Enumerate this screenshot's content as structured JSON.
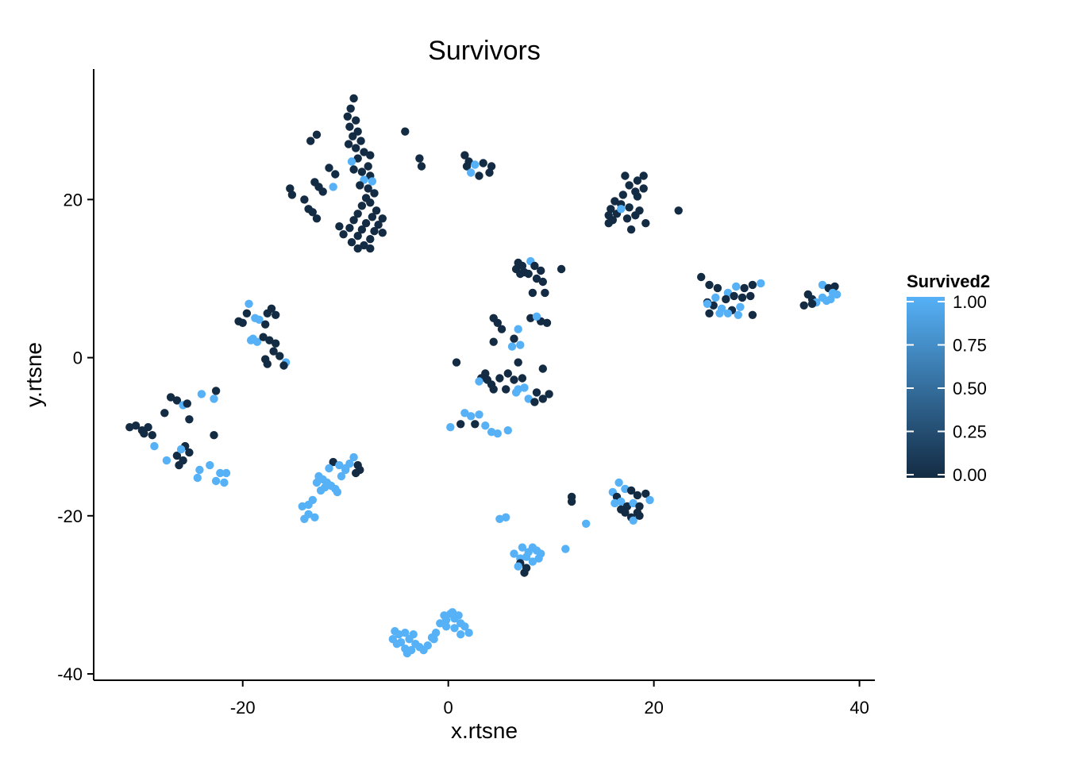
{
  "chart_data": {
    "type": "scatter",
    "title": "Survivors",
    "xlabel": "x.rtsne",
    "ylabel": "y.rtsne",
    "xlim": [
      -34.5,
      41.5
    ],
    "ylim": [
      -40.8,
      36.5
    ],
    "x_ticks": [
      -20,
      0,
      20,
      40
    ],
    "x_tick_labels": [
      "-20",
      "0",
      "20",
      "40"
    ],
    "y_ticks": [
      -40,
      -20,
      0,
      20
    ],
    "y_tick_labels": [
      "-40",
      "-20",
      "0",
      "20"
    ],
    "grid": false,
    "legend": {
      "title": "Survived2",
      "placement": "right",
      "type": "continuous-colorbar",
      "ticks": [
        0,
        0.25,
        0.5,
        0.75,
        1
      ],
      "tick_labels": [
        "0.00",
        "0.25",
        "0.50",
        "0.75",
        "1.00"
      ],
      "low_color": "#132B43",
      "high_color": "#56B1F7"
    },
    "point_fields": [
      "x",
      "y",
      "survived2"
    ],
    "points": [
      [
        -9.2,
        32.8,
        0
      ],
      [
        -9.5,
        31.5,
        0
      ],
      [
        -9.8,
        30.5,
        0
      ],
      [
        -9.0,
        30.0,
        0
      ],
      [
        -9.6,
        29.2,
        0
      ],
      [
        -8.8,
        28.6,
        0
      ],
      [
        -9.3,
        28.0,
        0
      ],
      [
        -8.5,
        27.4,
        0
      ],
      [
        -9.7,
        27.0,
        0
      ],
      [
        -9.0,
        26.5,
        0
      ],
      [
        -8.2,
        26.0,
        0
      ],
      [
        -7.6,
        25.6,
        0
      ],
      [
        -8.8,
        25.2,
        0
      ],
      [
        -9.4,
        24.8,
        1
      ],
      [
        -7.8,
        24.2,
        0
      ],
      [
        -9.2,
        23.8,
        0
      ],
      [
        -8.4,
        23.5,
        0
      ],
      [
        -7.6,
        23.0,
        0
      ],
      [
        -8.2,
        22.5,
        1
      ],
      [
        -7.4,
        22.3,
        1
      ],
      [
        -8.6,
        21.8,
        0
      ],
      [
        -7.8,
        21.4,
        0
      ],
      [
        -7.2,
        20.8,
        0
      ],
      [
        -8.0,
        20.2,
        0
      ],
      [
        -7.6,
        19.6,
        0
      ],
      [
        -8.4,
        19.2,
        0
      ],
      [
        -7.0,
        18.6,
        0
      ],
      [
        -8.8,
        18.2,
        0
      ],
      [
        -7.4,
        17.8,
        0
      ],
      [
        -6.4,
        17.6,
        0
      ],
      [
        -9.2,
        17.4,
        0
      ],
      [
        -8.0,
        17.0,
        0
      ],
      [
        -6.8,
        16.8,
        0
      ],
      [
        -9.6,
        16.4,
        0
      ],
      [
        -8.4,
        16.2,
        0
      ],
      [
        -7.2,
        16.0,
        0
      ],
      [
        -6.4,
        15.8,
        0
      ],
      [
        -10.2,
        15.6,
        0
      ],
      [
        -8.8,
        15.4,
        0
      ],
      [
        -7.6,
        15.0,
        0
      ],
      [
        -9.4,
        14.6,
        0
      ],
      [
        -8.2,
        14.2,
        0
      ],
      [
        -7.6,
        13.8,
        0
      ],
      [
        -8.8,
        13.8,
        0
      ],
      [
        -10.6,
        16.6,
        0
      ],
      [
        -12.8,
        28.2,
        0
      ],
      [
        -13.4,
        27.4,
        0
      ],
      [
        -11.6,
        24.0,
        0
      ],
      [
        -11.0,
        23.2,
        0
      ],
      [
        -13.0,
        22.2,
        0
      ],
      [
        -12.6,
        21.6,
        0
      ],
      [
        -12.2,
        21.0,
        0
      ],
      [
        -11.2,
        21.6,
        1
      ],
      [
        -15.4,
        21.4,
        0
      ],
      [
        -15.2,
        20.6,
        0
      ],
      [
        -14.0,
        20.0,
        0
      ],
      [
        -13.6,
        18.8,
        0
      ],
      [
        -13.2,
        18.4,
        0
      ],
      [
        -12.8,
        17.6,
        0
      ],
      [
        -4.2,
        28.6,
        0
      ],
      [
        -2.8,
        25.2,
        0
      ],
      [
        -2.6,
        24.2,
        0
      ],
      [
        1.6,
        25.6,
        0
      ],
      [
        2.0,
        24.8,
        0
      ],
      [
        1.8,
        24.2,
        0
      ],
      [
        2.6,
        24.4,
        1
      ],
      [
        3.4,
        24.6,
        0
      ],
      [
        4.2,
        24.2,
        0
      ],
      [
        2.2,
        23.4,
        1
      ],
      [
        3.0,
        23.0,
        0
      ],
      [
        4.0,
        23.4,
        0
      ],
      [
        17.2,
        23.0,
        0
      ],
      [
        18.4,
        22.4,
        0
      ],
      [
        19.0,
        23.0,
        0
      ],
      [
        17.6,
        21.8,
        0
      ],
      [
        18.2,
        21.0,
        0
      ],
      [
        19.0,
        21.4,
        0
      ],
      [
        17.0,
        20.6,
        0
      ],
      [
        18.4,
        20.4,
        0
      ],
      [
        16.2,
        19.8,
        0
      ],
      [
        16.8,
        19.4,
        0
      ],
      [
        15.8,
        18.8,
        0
      ],
      [
        16.4,
        18.2,
        0
      ],
      [
        16.8,
        18.8,
        1
      ],
      [
        17.6,
        19.0,
        0
      ],
      [
        15.6,
        18.0,
        0
      ],
      [
        16.0,
        17.4,
        0
      ],
      [
        17.4,
        17.6,
        0
      ],
      [
        18.2,
        18.0,
        0
      ],
      [
        18.6,
        18.6,
        0
      ],
      [
        19.2,
        17.0,
        0
      ],
      [
        17.8,
        16.2,
        0
      ],
      [
        15.6,
        17.0,
        0
      ],
      [
        22.4,
        18.6,
        0
      ],
      [
        24.6,
        10.2,
        0
      ],
      [
        25.4,
        9.2,
        0
      ],
      [
        26.2,
        8.8,
        0
      ],
      [
        27.2,
        8.2,
        1
      ],
      [
        28.0,
        9.0,
        1
      ],
      [
        28.8,
        8.8,
        0
      ],
      [
        29.6,
        9.2,
        0
      ],
      [
        30.4,
        9.4,
        1
      ],
      [
        26.0,
        7.6,
        1
      ],
      [
        27.0,
        7.4,
        0
      ],
      [
        27.8,
        7.8,
        0
      ],
      [
        28.6,
        7.6,
        0
      ],
      [
        29.4,
        7.8,
        0
      ],
      [
        25.2,
        7.0,
        0
      ],
      [
        25.8,
        6.6,
        0
      ],
      [
        26.6,
        6.2,
        1
      ],
      [
        27.6,
        6.0,
        0
      ],
      [
        28.4,
        6.4,
        1
      ],
      [
        25.4,
        5.6,
        0
      ],
      [
        26.4,
        5.6,
        1
      ],
      [
        27.2,
        5.6,
        1
      ],
      [
        28.2,
        5.4,
        1
      ],
      [
        29.6,
        5.4,
        0
      ],
      [
        25.2,
        6.8,
        1
      ],
      [
        35.0,
        8.0,
        0
      ],
      [
        35.4,
        7.4,
        0
      ],
      [
        35.8,
        7.0,
        1
      ],
      [
        36.4,
        7.6,
        1
      ],
      [
        36.4,
        9.2,
        1
      ],
      [
        37.0,
        8.8,
        0
      ],
      [
        37.6,
        9.0,
        0
      ],
      [
        37.4,
        8.2,
        1
      ],
      [
        37.8,
        8.0,
        1
      ],
      [
        36.8,
        7.2,
        1
      ],
      [
        37.2,
        7.4,
        1
      ],
      [
        34.6,
        6.6,
        0
      ],
      [
        35.4,
        6.8,
        0
      ],
      [
        6.8,
        12.0,
        0
      ],
      [
        7.2,
        11.6,
        0
      ],
      [
        6.6,
        11.2,
        0
      ],
      [
        7.4,
        10.8,
        0
      ],
      [
        8.0,
        12.2,
        1
      ],
      [
        8.4,
        11.6,
        0
      ],
      [
        9.0,
        11.0,
        0
      ],
      [
        11.0,
        11.2,
        0
      ],
      [
        7.0,
        10.6,
        0
      ],
      [
        7.8,
        10.6,
        0
      ],
      [
        8.6,
        10.0,
        0
      ],
      [
        9.2,
        9.6,
        0
      ],
      [
        8.2,
        8.2,
        0
      ],
      [
        9.4,
        8.2,
        0
      ],
      [
        8.0,
        5.0,
        0
      ],
      [
        9.0,
        4.6,
        0
      ],
      [
        9.6,
        4.4,
        0
      ],
      [
        8.6,
        5.2,
        1
      ],
      [
        4.4,
        5.0,
        0
      ],
      [
        4.8,
        4.4,
        0
      ],
      [
        5.2,
        3.6,
        0
      ],
      [
        6.8,
        3.6,
        1
      ],
      [
        4.4,
        2.0,
        0
      ],
      [
        6.4,
        2.4,
        0
      ],
      [
        7.0,
        1.6,
        1
      ],
      [
        6.2,
        1.4,
        1
      ],
      [
        6.8,
        -0.6,
        0
      ],
      [
        9.2,
        -1.4,
        0
      ],
      [
        0.8,
        -0.6,
        0
      ],
      [
        3.6,
        -2.0,
        0
      ],
      [
        3.2,
        -2.6,
        0
      ],
      [
        4.2,
        -3.4,
        0
      ],
      [
        3.8,
        -2.8,
        0
      ],
      [
        5.0,
        -2.6,
        0
      ],
      [
        5.8,
        -2.0,
        0
      ],
      [
        6.4,
        -2.8,
        0
      ],
      [
        7.2,
        -2.6,
        0
      ],
      [
        3.0,
        -3.0,
        1
      ],
      [
        4.4,
        -4.0,
        0
      ],
      [
        5.6,
        -4.0,
        0
      ],
      [
        6.6,
        -4.4,
        1
      ],
      [
        7.4,
        -3.8,
        1
      ],
      [
        7.8,
        -5.2,
        1
      ],
      [
        8.6,
        -4.4,
        0
      ],
      [
        9.2,
        -5.2,
        0
      ],
      [
        8.4,
        -5.6,
        0
      ],
      [
        9.8,
        -4.6,
        0
      ],
      [
        6.8,
        -4.0,
        1
      ],
      [
        1.6,
        -7.0,
        1
      ],
      [
        2.2,
        -7.4,
        1
      ],
      [
        3.0,
        -7.2,
        1
      ],
      [
        1.2,
        -8.4,
        0
      ],
      [
        2.6,
        -8.4,
        0
      ],
      [
        3.6,
        -8.6,
        1
      ],
      [
        4.2,
        -9.4,
        1
      ],
      [
        4.8,
        -9.6,
        1
      ],
      [
        5.8,
        -9.2,
        1
      ],
      [
        0.2,
        -8.8,
        1
      ],
      [
        -19.6,
        5.6,
        0
      ],
      [
        -20.4,
        4.6,
        0
      ],
      [
        -20.0,
        4.4,
        0
      ],
      [
        -19.4,
        6.8,
        1
      ],
      [
        -18.8,
        5.0,
        1
      ],
      [
        -18.4,
        4.8,
        1
      ],
      [
        -17.6,
        5.6,
        0
      ],
      [
        -17.2,
        6.2,
        0
      ],
      [
        -16.8,
        5.4,
        0
      ],
      [
        -17.8,
        4.2,
        0
      ],
      [
        -19.0,
        2.4,
        1
      ],
      [
        -18.6,
        2.0,
        1
      ],
      [
        -18.0,
        2.6,
        0
      ],
      [
        -17.4,
        2.2,
        0
      ],
      [
        -16.8,
        1.8,
        0
      ],
      [
        -17.0,
        0.8,
        0
      ],
      [
        -16.4,
        0.2,
        0
      ],
      [
        -15.8,
        -0.6,
        1
      ],
      [
        -16.0,
        -1.0,
        0
      ],
      [
        -17.8,
        -0.2,
        0
      ],
      [
        -17.6,
        -0.8,
        0
      ],
      [
        -19.2,
        2.2,
        1
      ],
      [
        -31.0,
        -8.8,
        0
      ],
      [
        -30.4,
        -8.6,
        0
      ],
      [
        -29.8,
        -9.2,
        0
      ],
      [
        -29.2,
        -8.8,
        0
      ],
      [
        -28.8,
        -9.8,
        0
      ],
      [
        -29.6,
        -9.6,
        0
      ],
      [
        -28.6,
        -11.2,
        1
      ],
      [
        -27.6,
        -7.0,
        0
      ],
      [
        -27.0,
        -5.0,
        0
      ],
      [
        -26.4,
        -5.4,
        0
      ],
      [
        -25.8,
        -6.0,
        1
      ],
      [
        -25.4,
        -5.8,
        0
      ],
      [
        -24.0,
        -4.6,
        1
      ],
      [
        -22.6,
        -4.2,
        0
      ],
      [
        -22.8,
        -5.2,
        1
      ],
      [
        -25.2,
        -7.8,
        0
      ],
      [
        -22.8,
        -9.8,
        0
      ],
      [
        -25.6,
        -11.2,
        0
      ],
      [
        -25.2,
        -12.0,
        0
      ],
      [
        -26.4,
        -12.4,
        0
      ],
      [
        -25.8,
        -13.0,
        0
      ],
      [
        -27.4,
        -13.0,
        1
      ],
      [
        -26.2,
        -13.6,
        0
      ],
      [
        -24.2,
        -14.2,
        1
      ],
      [
        -24.4,
        -15.2,
        1
      ],
      [
        -23.2,
        -13.6,
        1
      ],
      [
        -22.2,
        -14.6,
        1
      ],
      [
        -21.6,
        -14.6,
        1
      ],
      [
        -22.6,
        -15.6,
        1
      ],
      [
        -21.8,
        -15.8,
        1
      ],
      [
        -26.0,
        -11.6,
        1
      ]
    ],
    "points_b": [
      [
        -14.2,
        -18.8,
        1
      ],
      [
        -13.6,
        -18.6,
        1
      ],
      [
        -13.2,
        -18.0,
        1
      ],
      [
        -13.6,
        -19.8,
        1
      ],
      [
        -13.0,
        -20.2,
        1
      ],
      [
        -14.0,
        -20.4,
        1
      ],
      [
        -12.6,
        -15.0,
        1
      ],
      [
        -12.2,
        -15.4,
        1
      ],
      [
        -11.8,
        -15.8,
        1
      ],
      [
        -11.4,
        -16.2,
        1
      ],
      [
        -11.0,
        -16.6,
        1
      ],
      [
        -10.8,
        -17.0,
        1
      ],
      [
        -12.0,
        -16.4,
        1
      ],
      [
        -11.2,
        -13.2,
        0
      ],
      [
        -10.6,
        -13.6,
        1
      ],
      [
        -10.0,
        -14.2,
        1
      ],
      [
        -10.4,
        -15.0,
        1
      ],
      [
        -9.6,
        -13.4,
        1
      ],
      [
        -9.2,
        -12.6,
        1
      ],
      [
        -8.8,
        -13.6,
        0
      ],
      [
        -8.6,
        -14.2,
        0
      ],
      [
        -9.0,
        -14.6,
        0
      ],
      [
        -10.0,
        -14.0,
        1
      ],
      [
        -11.6,
        -14.0,
        1
      ],
      [
        -12.8,
        -15.8,
        1
      ],
      [
        -12.4,
        -16.8,
        1
      ],
      [
        7.2,
        -24.0,
        1
      ],
      [
        7.8,
        -24.6,
        1
      ],
      [
        8.2,
        -24.0,
        1
      ],
      [
        8.6,
        -24.4,
        1
      ],
      [
        6.4,
        -24.8,
        1
      ],
      [
        7.0,
        -25.4,
        1
      ],
      [
        7.6,
        -25.2,
        1
      ],
      [
        8.2,
        -25.8,
        1
      ],
      [
        8.8,
        -25.4,
        1
      ],
      [
        7.0,
        -26.0,
        0
      ],
      [
        7.6,
        -26.6,
        0
      ],
      [
        7.4,
        -27.2,
        0
      ],
      [
        6.8,
        -26.4,
        1
      ],
      [
        9.0,
        -24.8,
        1
      ],
      [
        11.4,
        -24.2,
        1
      ],
      [
        13.4,
        -21.0,
        1
      ],
      [
        12.0,
        -17.6,
        0
      ],
      [
        12.0,
        -18.2,
        0
      ],
      [
        5.0,
        -20.4,
        1
      ],
      [
        5.6,
        -20.2,
        1
      ],
      [
        16.0,
        -17.0,
        1
      ],
      [
        16.6,
        -15.8,
        1
      ],
      [
        17.2,
        -16.6,
        1
      ],
      [
        17.8,
        -16.8,
        0
      ],
      [
        18.4,
        -17.4,
        0
      ],
      [
        19.2,
        -17.2,
        0
      ],
      [
        16.4,
        -17.6,
        0
      ],
      [
        16.8,
        -18.2,
        1
      ],
      [
        17.4,
        -18.8,
        0
      ],
      [
        18.0,
        -18.4,
        1
      ],
      [
        18.6,
        -18.8,
        0
      ],
      [
        19.6,
        -18.0,
        1
      ],
      [
        16.8,
        -19.2,
        0
      ],
      [
        17.2,
        -19.6,
        0
      ],
      [
        17.8,
        -20.2,
        0
      ],
      [
        18.4,
        -19.6,
        0
      ],
      [
        18.0,
        -20.6,
        1
      ],
      [
        16.2,
        -18.4,
        1
      ],
      [
        18.6,
        -20.0,
        0
      ],
      [
        -5.2,
        -34.6,
        1
      ],
      [
        -4.8,
        -35.0,
        1
      ],
      [
        -4.2,
        -34.8,
        1
      ],
      [
        -5.4,
        -35.6,
        1
      ],
      [
        -4.6,
        -36.0,
        1
      ],
      [
        -3.8,
        -35.6,
        1
      ],
      [
        -3.2,
        -36.2,
        1
      ],
      [
        -4.2,
        -36.8,
        1
      ],
      [
        -3.6,
        -37.0,
        1
      ],
      [
        -2.8,
        -36.6,
        1
      ],
      [
        -2.4,
        -37.0,
        1
      ],
      [
        -3.4,
        -35.0,
        1
      ],
      [
        -4.0,
        -37.4,
        1
      ],
      [
        -5.0,
        -36.2,
        1
      ],
      [
        -1.6,
        -35.4,
        1
      ],
      [
        -1.2,
        -34.8,
        1
      ],
      [
        -0.8,
        -33.6,
        1
      ],
      [
        -0.2,
        -33.2,
        1
      ],
      [
        0.2,
        -32.4,
        1
      ],
      [
        -0.4,
        -32.6,
        1
      ],
      [
        0.6,
        -33.0,
        1
      ],
      [
        1.0,
        -32.6,
        1
      ],
      [
        -0.2,
        -34.0,
        1
      ],
      [
        0.6,
        -34.2,
        1
      ],
      [
        1.2,
        -33.6,
        1
      ],
      [
        1.6,
        -34.0,
        1
      ],
      [
        1.2,
        -35.0,
        1
      ],
      [
        2.0,
        -34.8,
        1
      ],
      [
        0.4,
        -32.2,
        1
      ],
      [
        -1.4,
        -35.6,
        1
      ],
      [
        -2.0,
        -36.4,
        1
      ]
    ]
  }
}
